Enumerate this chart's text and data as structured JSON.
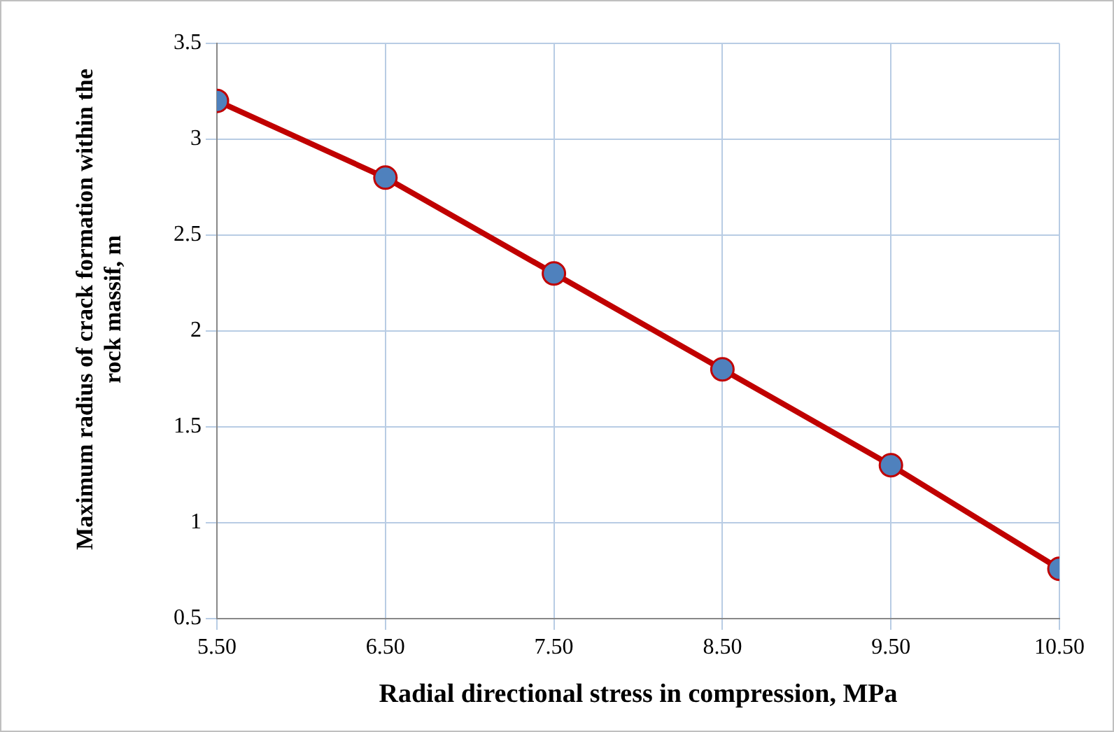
{
  "chart_data": {
    "type": "line",
    "xlabel": "Radial directional stress in compression, MPa",
    "ylabel": "Maximum  radius of crack formation within the rock massif, m",
    "x": [
      5.5,
      6.5,
      7.5,
      8.5,
      9.5,
      10.5
    ],
    "series": [
      {
        "color": "#c00000",
        "values": [
          3.2,
          2.8,
          2.3,
          1.8,
          1.3,
          0.76
        ]
      }
    ],
    "xlim": [
      5.5,
      10.5
    ],
    "xticks": [
      {
        "value": 5.5,
        "label": "5.50"
      },
      {
        "value": 6.5,
        "label": "6.50"
      },
      {
        "value": 7.5,
        "label": "7.50"
      },
      {
        "value": 8.5,
        "label": "8.50"
      },
      {
        "value": 9.5,
        "label": "9.50"
      },
      {
        "value": 10.5,
        "label": "10.50"
      }
    ],
    "ylim": [
      0.5,
      3.5
    ],
    "yticks": [
      0.5,
      1,
      1.5,
      2,
      2.5,
      3,
      3.5
    ],
    "grid": true,
    "legend": false,
    "marker": "circle",
    "line_style": "solid"
  }
}
